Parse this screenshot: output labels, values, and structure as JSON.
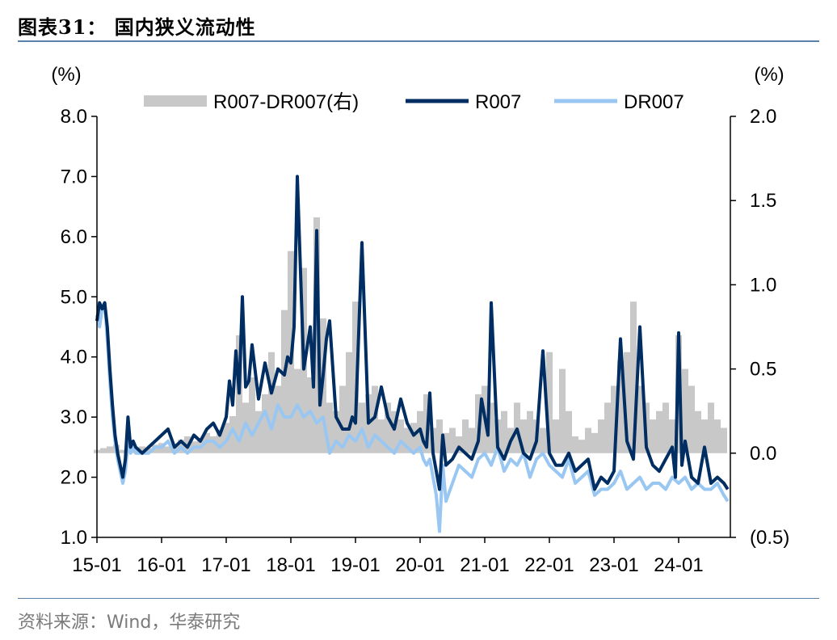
{
  "figure": {
    "title": "图表31：  国内狭义流动性",
    "source": "资料来源：Wind，华泰研究"
  },
  "chart_data": {
    "type": "line",
    "left_unit": "(%)",
    "right_unit": "(%)",
    "left_ylim": [
      1.0,
      8.0
    ],
    "right_ylim": [
      -0.5,
      2.0
    ],
    "left_ticks": [
      "8.0",
      "7.0",
      "6.0",
      "5.0",
      "4.0",
      "3.0",
      "2.0",
      "1.0"
    ],
    "right_ticks": [
      "2.0",
      "1.5",
      "1.0",
      "0.5",
      "0.0",
      "(0.5)"
    ],
    "x_ticks": [
      "15-01",
      "16-01",
      "17-01",
      "18-01",
      "19-01",
      "20-01",
      "21-01",
      "22-01",
      "23-01",
      "24-01"
    ],
    "grid": false,
    "legend_position": "top",
    "colors": {
      "spread": "#c8c8c8",
      "r007": "#002d62",
      "dr007": "#99c7f2"
    },
    "series": [
      {
        "name": "R007-DR007(右)",
        "axis": "right",
        "kind": "bar",
        "x": [
          2015.0,
          2015.1,
          2015.2,
          2015.3,
          2015.4,
          2015.5,
          2015.6,
          2015.7,
          2015.8,
          2015.9,
          2016.0,
          2016.1,
          2016.2,
          2016.3,
          2016.4,
          2016.5,
          2016.6,
          2016.7,
          2016.8,
          2016.9,
          2017.0,
          2017.1,
          2017.2,
          2017.3,
          2017.4,
          2017.5,
          2017.6,
          2017.7,
          2017.8,
          2017.9,
          2018.0,
          2018.1,
          2018.2,
          2018.3,
          2018.4,
          2018.5,
          2018.6,
          2018.7,
          2018.8,
          2018.9,
          2019.0,
          2019.1,
          2019.2,
          2019.3,
          2019.4,
          2019.5,
          2019.6,
          2019.7,
          2019.8,
          2019.9,
          2020.0,
          2020.1,
          2020.2,
          2020.3,
          2020.4,
          2020.5,
          2020.6,
          2020.7,
          2020.8,
          2020.9,
          2021.0,
          2021.1,
          2021.2,
          2021.3,
          2021.4,
          2021.5,
          2021.6,
          2021.7,
          2021.8,
          2021.9,
          2022.0,
          2022.1,
          2022.2,
          2022.3,
          2022.4,
          2022.5,
          2022.6,
          2022.7,
          2022.8,
          2022.9,
          2023.0,
          2023.1,
          2023.2,
          2023.3,
          2023.4,
          2023.5,
          2023.6,
          2023.7,
          2023.8,
          2023.9,
          2024.0,
          2024.1,
          2024.2,
          2024.3,
          2024.4,
          2024.5,
          2024.6,
          2024.7
        ],
        "values": [
          0.02,
          0.03,
          0.04,
          0.05,
          0.02,
          0.03,
          0.02,
          0.04,
          0.03,
          0.05,
          0.06,
          0.04,
          0.05,
          0.08,
          0.1,
          0.07,
          0.09,
          0.12,
          0.1,
          0.14,
          0.18,
          0.22,
          0.7,
          0.3,
          0.45,
          0.25,
          0.35,
          0.6,
          0.4,
          0.85,
          1.2,
          0.5,
          1.1,
          0.45,
          1.4,
          0.8,
          0.3,
          0.25,
          0.4,
          0.6,
          0.9,
          0.3,
          0.35,
          0.4,
          0.2,
          0.3,
          0.25,
          0.2,
          0.15,
          0.18,
          0.25,
          0.35,
          0.15,
          0.2,
          0.12,
          0.15,
          0.1,
          0.2,
          0.15,
          0.35,
          0.4,
          0.3,
          0.2,
          0.25,
          0.15,
          0.3,
          0.2,
          0.25,
          0.2,
          0.15,
          0.6,
          0.2,
          0.5,
          0.25,
          0.1,
          0.08,
          0.15,
          0.12,
          0.2,
          0.3,
          0.4,
          0.55,
          0.6,
          0.9,
          0.4,
          0.3,
          0.2,
          0.25,
          0.3,
          0.2,
          0.7,
          0.5,
          0.4,
          0.25,
          0.2,
          0.3,
          0.2,
          0.15
        ]
      },
      {
        "name": "R007",
        "axis": "left",
        "kind": "line",
        "x": [
          2015.0,
          2015.04,
          2015.08,
          2015.12,
          2015.16,
          2015.2,
          2015.24,
          2015.28,
          2015.32,
          2015.36,
          2015.4,
          2015.44,
          2015.48,
          2015.52,
          2015.56,
          2015.6,
          2015.7,
          2015.8,
          2015.9,
          2016.0,
          2016.1,
          2016.2,
          2016.3,
          2016.4,
          2016.5,
          2016.6,
          2016.7,
          2016.8,
          2016.9,
          2017.0,
          2017.05,
          2017.1,
          2017.15,
          2017.2,
          2017.25,
          2017.3,
          2017.35,
          2017.4,
          2017.5,
          2017.6,
          2017.7,
          2017.8,
          2017.9,
          2017.95,
          2018.0,
          2018.05,
          2018.1,
          2018.2,
          2018.3,
          2018.35,
          2018.4,
          2018.45,
          2018.5,
          2018.55,
          2018.6,
          2018.7,
          2018.8,
          2018.9,
          2018.95,
          2019.0,
          2019.1,
          2019.2,
          2019.3,
          2019.4,
          2019.5,
          2019.6,
          2019.7,
          2019.8,
          2019.9,
          2020.0,
          2020.05,
          2020.1,
          2020.15,
          2020.2,
          2020.25,
          2020.3,
          2020.35,
          2020.4,
          2020.5,
          2020.6,
          2020.7,
          2020.8,
          2020.9,
          2020.95,
          2021.0,
          2021.05,
          2021.1,
          2021.2,
          2021.3,
          2021.4,
          2021.5,
          2021.6,
          2021.7,
          2021.8,
          2021.9,
          2022.0,
          2022.1,
          2022.2,
          2022.3,
          2022.4,
          2022.5,
          2022.6,
          2022.7,
          2022.8,
          2022.9,
          2023.0,
          2023.05,
          2023.1,
          2023.2,
          2023.3,
          2023.4,
          2023.5,
          2023.6,
          2023.7,
          2023.8,
          2023.9,
          2023.95,
          2024.0,
          2024.05,
          2024.1,
          2024.2,
          2024.3,
          2024.4,
          2024.5,
          2024.6,
          2024.7,
          2024.76
        ],
        "values": [
          4.6,
          4.9,
          4.8,
          4.9,
          4.5,
          3.8,
          3.2,
          2.7,
          2.4,
          2.2,
          2.0,
          2.3,
          3.0,
          2.5,
          2.6,
          2.5,
          2.4,
          2.5,
          2.6,
          2.7,
          2.8,
          2.5,
          2.6,
          2.5,
          2.7,
          2.6,
          2.8,
          2.9,
          2.7,
          3.0,
          3.6,
          3.2,
          4.1,
          3.4,
          5.0,
          3.5,
          3.6,
          4.2,
          3.3,
          3.9,
          3.4,
          3.8,
          3.7,
          4.0,
          3.9,
          4.5,
          7.0,
          3.8,
          4.5,
          3.5,
          6.1,
          3.2,
          3.7,
          4.3,
          4.6,
          3.0,
          2.8,
          2.8,
          3.0,
          2.9,
          5.9,
          2.9,
          3.0,
          3.5,
          3.0,
          2.8,
          3.3,
          2.9,
          2.7,
          2.8,
          2.6,
          2.5,
          3.4,
          2.4,
          2.1,
          1.8,
          2.7,
          2.2,
          2.3,
          2.5,
          2.4,
          2.3,
          2.6,
          3.3,
          3.0,
          2.7,
          4.9,
          2.5,
          2.3,
          2.6,
          2.8,
          2.4,
          2.3,
          2.6,
          4.1,
          2.4,
          2.2,
          2.2,
          2.4,
          2.1,
          2.2,
          2.3,
          1.8,
          2.0,
          1.9,
          2.1,
          3.2,
          4.3,
          2.6,
          2.3,
          4.5,
          2.5,
          2.2,
          2.1,
          2.3,
          2.5,
          2.0,
          4.4,
          2.2,
          2.6,
          2.0,
          1.9,
          2.5,
          1.9,
          2.0,
          1.9,
          1.8
        ]
      },
      {
        "name": "DR007",
        "axis": "left",
        "kind": "line",
        "x": [
          2015.0,
          2015.04,
          2015.08,
          2015.12,
          2015.16,
          2015.2,
          2015.24,
          2015.28,
          2015.32,
          2015.36,
          2015.4,
          2015.44,
          2015.48,
          2015.52,
          2015.56,
          2015.6,
          2015.7,
          2015.8,
          2015.9,
          2016.0,
          2016.1,
          2016.2,
          2016.3,
          2016.4,
          2016.5,
          2016.6,
          2016.7,
          2016.8,
          2016.9,
          2017.0,
          2017.1,
          2017.2,
          2017.3,
          2017.4,
          2017.5,
          2017.6,
          2017.7,
          2017.8,
          2017.9,
          2018.0,
          2018.1,
          2018.2,
          2018.3,
          2018.4,
          2018.5,
          2018.6,
          2018.7,
          2018.8,
          2018.9,
          2019.0,
          2019.1,
          2019.2,
          2019.3,
          2019.4,
          2019.5,
          2019.6,
          2019.7,
          2019.8,
          2019.9,
          2020.0,
          2020.05,
          2020.1,
          2020.15,
          2020.2,
          2020.25,
          2020.3,
          2020.35,
          2020.4,
          2020.5,
          2020.6,
          2020.7,
          2020.8,
          2020.9,
          2021.0,
          2021.1,
          2021.2,
          2021.3,
          2021.4,
          2021.5,
          2021.6,
          2021.7,
          2021.8,
          2021.9,
          2022.0,
          2022.1,
          2022.2,
          2022.3,
          2022.4,
          2022.5,
          2022.6,
          2022.7,
          2022.8,
          2022.9,
          2023.0,
          2023.1,
          2023.2,
          2023.3,
          2023.4,
          2023.5,
          2023.6,
          2023.7,
          2023.8,
          2023.9,
          2024.0,
          2024.1,
          2024.2,
          2024.3,
          2024.4,
          2024.5,
          2024.6,
          2024.7,
          2024.76
        ],
        "values": [
          4.7,
          4.5,
          4.8,
          4.9,
          4.3,
          3.6,
          3.0,
          2.6,
          2.3,
          2.1,
          1.9,
          2.1,
          2.6,
          2.4,
          2.5,
          2.4,
          2.4,
          2.4,
          2.5,
          2.5,
          2.6,
          2.4,
          2.5,
          2.4,
          2.5,
          2.5,
          2.6,
          2.6,
          2.5,
          2.6,
          2.8,
          2.6,
          2.9,
          2.7,
          2.9,
          3.1,
          2.8,
          3.2,
          3.0,
          3.0,
          3.2,
          3.0,
          3.1,
          2.9,
          3.0,
          2.4,
          2.6,
          2.5,
          2.7,
          2.6,
          2.8,
          2.5,
          2.7,
          2.6,
          2.5,
          2.4,
          2.6,
          2.5,
          2.4,
          2.5,
          2.3,
          2.2,
          2.3,
          2.0,
          1.7,
          1.1,
          2.2,
          1.6,
          1.9,
          2.2,
          2.1,
          2.0,
          2.3,
          2.4,
          2.2,
          2.5,
          2.1,
          2.3,
          2.2,
          2.4,
          2.0,
          2.3,
          2.4,
          2.2,
          2.1,
          2.0,
          2.3,
          1.9,
          2.0,
          2.1,
          1.7,
          1.8,
          1.8,
          1.9,
          2.1,
          1.8,
          1.9,
          2.0,
          1.8,
          1.9,
          1.9,
          1.8,
          2.0,
          1.9,
          2.0,
          1.8,
          1.9,
          1.8,
          1.8,
          1.9,
          1.7,
          1.6
        ]
      }
    ]
  }
}
